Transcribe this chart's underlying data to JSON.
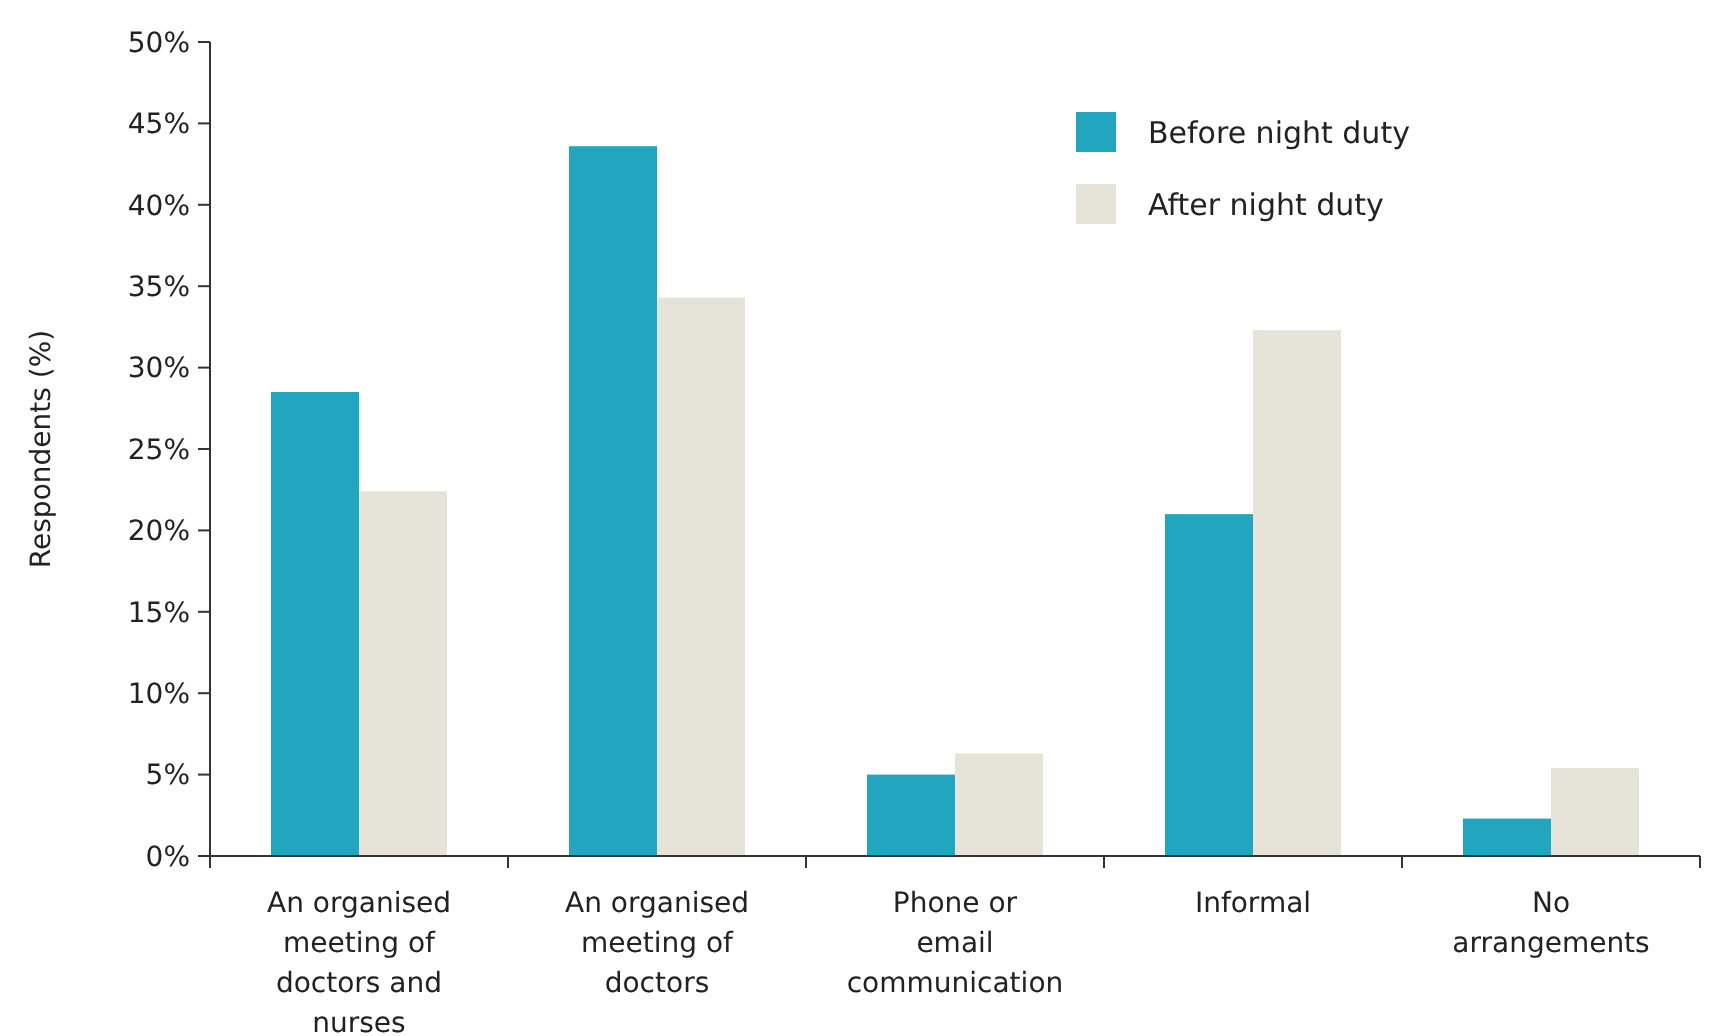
{
  "chart_data": {
    "type": "bar",
    "ylabel": "Respondents (%)",
    "categories": [
      "An organised meeting of doctors and nurses",
      "An organised meeting of doctors",
      "Phone or email communication",
      "Informal",
      "No arrangements"
    ],
    "series": [
      {
        "name": "Before night duty",
        "color": "#22a6c0",
        "values": [
          28.5,
          43.6,
          5.0,
          21.0,
          2.3
        ]
      },
      {
        "name": "After night duty",
        "color": "#e6e3d9",
        "values": [
          22.4,
          34.3,
          6.3,
          32.3,
          5.4
        ]
      }
    ],
    "ylim": [
      0,
      50
    ],
    "yticks": [
      {
        "value": 0,
        "label": "0%"
      },
      {
        "value": 5,
        "label": "5%"
      },
      {
        "value": 10,
        "label": "10%"
      },
      {
        "value": 15,
        "label": "15%"
      },
      {
        "value": 20,
        "label": "20%"
      },
      {
        "value": 25,
        "label": "25%"
      },
      {
        "value": 30,
        "label": "30%"
      },
      {
        "value": 35,
        "label": "35%"
      },
      {
        "value": 40,
        "label": "40%"
      },
      {
        "value": 45,
        "label": "45%"
      },
      {
        "value": 50,
        "label": "50%"
      }
    ],
    "grid": false,
    "legend": "top right"
  }
}
